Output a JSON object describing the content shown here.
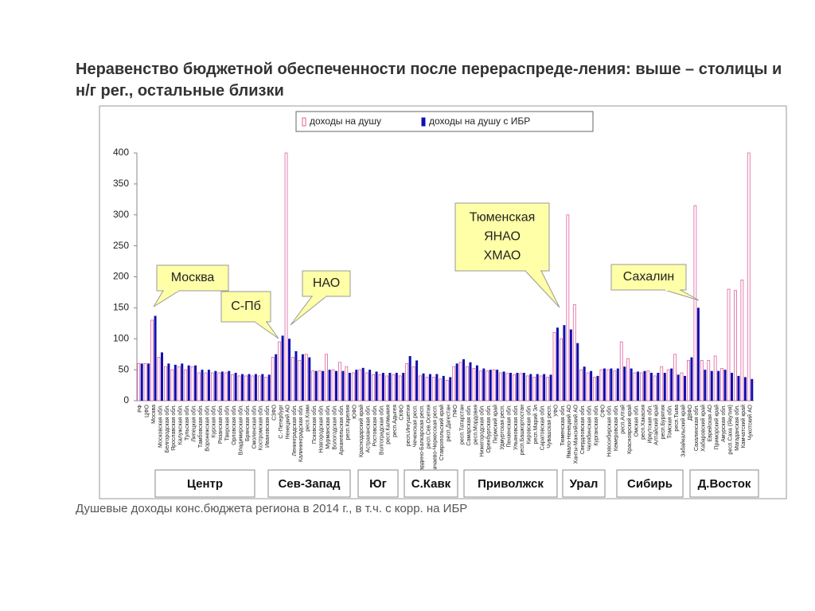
{
  "chart_data": {
    "type": "bar",
    "title": "Неравенство бюджетной обеспеченности после перераспреде-ления: выше – столицы и н/г рег., остальные близки",
    "caption": "Душевые доходы конс.бюджета региона в 2014 г., в т.ч. с корр. на ИБР",
    "categories": [
      "РФ",
      "ЦФО",
      "Москва",
      "Московская обл.",
      "Белгородская обл.",
      "Ярославская обл.",
      "Калужская обл.",
      "Тульская обл.",
      "Липецкая обл.",
      "Тамбовская обл.",
      "Воронежская обл.",
      "Курская обл.",
      "Рязанская обл.",
      "Тверская обл.",
      "Орловская обл.",
      "Владимирская обл.",
      "Брянская обл.",
      "Смоленская обл.",
      "Костромская обл.",
      "Ивановская обл.",
      "СЗФО",
      "С.-Петербург",
      "Ненецкий АО",
      "Ленинградская обл.",
      "Калининградская обл.",
      "респ.Коми",
      "Псковская обл.",
      "Новгородская обл.",
      "Мурманская обл.",
      "Вологодская обл.",
      "Архангельская обл.",
      "респ.Карелия",
      "ЮФО",
      "Краснодарский край",
      "Астраханская обл.",
      "Ростовская обл.",
      "Волгоградская обл.",
      "респ.Калмыкия",
      "респ.Адыгея",
      "СКФО",
      "респ.Ингушетия",
      "Чеченская респ.",
      "Кабардино-Балкарская респ.",
      "респ.Сев.Осетия",
      "Карачаево-Черкесская респ.",
      "Ставропольский край",
      "респ.Дагестан",
      "ПФО",
      "респ.Татарстан",
      "Самарская обл.",
      "респ.Мордовия",
      "Нижегородская обл.",
      "Оренбургская обл.",
      "Пермский край",
      "Удмуртская респ.",
      "Пензенская обл.",
      "Ульяновская обл.",
      "респ.Башкортостан",
      "Кировская обл.",
      "респ.Марий Эл",
      "Саратовская обл.",
      "Чувашская респ.",
      "УФО",
      "Тюменская обл.",
      "Ямало-Ненецкий АО",
      "Ханты-Мансийский АО",
      "Свердловская обл.",
      "Челябинская обл.",
      "Курганская обл.",
      "СФО",
      "Новосибирская обл.",
      "Кемеровская обл.",
      "респ.Алтай",
      "Красноярский край",
      "Омская обл.",
      "респ.Хакасия",
      "Иркутская обл.",
      "Алтайский край",
      "респ.Бурятия",
      "Томская обл.",
      "респ.Тыва",
      "Забайкальский край",
      "ДВФО",
      "Сахалинская обл.",
      "Хабаровский край",
      "Еврейская АО",
      "Приморский край",
      "Амурская обл.",
      "респ.Саха (Якутия)",
      "Магаданская обл.",
      "Камчатский край",
      "Чукотский АО"
    ],
    "series": [
      {
        "name": "доходы на душу",
        "color": "#e0609c",
        "values": [
          60,
          60,
          130,
          70,
          55,
          50,
          55,
          50,
          55,
          45,
          45,
          45,
          45,
          45,
          42,
          40,
          40,
          40,
          40,
          38,
          70,
          95,
          400,
          70,
          65,
          75,
          48,
          48,
          75,
          50,
          62,
          55,
          45,
          50,
          45,
          42,
          42,
          40,
          42,
          40,
          60,
          55,
          40,
          38,
          38,
          35,
          33,
          55,
          62,
          55,
          52,
          48,
          48,
          50,
          45,
          44,
          42,
          44,
          40,
          38,
          40,
          38,
          110,
          100,
          300,
          155,
          50,
          45,
          38,
          50,
          50,
          48,
          95,
          68,
          45,
          45,
          48,
          40,
          55,
          50,
          75,
          45,
          65,
          315,
          65,
          65,
          72,
          52,
          180,
          178,
          195,
          400
        ]
      },
      {
        "name": "доходы на душу с ИБР",
        "color": "#1010b0",
        "values": [
          60,
          60,
          137,
          78,
          60,
          58,
          60,
          57,
          57,
          50,
          50,
          48,
          47,
          48,
          45,
          43,
          43,
          43,
          43,
          42,
          75,
          105,
          100,
          80,
          75,
          70,
          48,
          48,
          50,
          48,
          48,
          45,
          50,
          53,
          50,
          47,
          45,
          45,
          45,
          45,
          72,
          65,
          44,
          43,
          43,
          40,
          38,
          60,
          67,
          62,
          57,
          52,
          50,
          50,
          47,
          45,
          45,
          45,
          43,
          43,
          43,
          42,
          118,
          122,
          115,
          93,
          55,
          48,
          40,
          52,
          52,
          52,
          55,
          52,
          47,
          48,
          45,
          45,
          45,
          52,
          42,
          40,
          70,
          150,
          50,
          48,
          48,
          50,
          45,
          40,
          38,
          35
        ]
      }
    ],
    "ylim": [
      0,
      400
    ],
    "yticks": [
      0,
      50,
      100,
      150,
      200,
      250,
      300,
      350,
      400
    ],
    "annotations": [
      [
        "Москва"
      ],
      [
        "С-Пб"
      ],
      [
        "НАО"
      ],
      [
        "Тюменская",
        "ЯНАО",
        "ХМАО"
      ],
      [
        "Сахалин"
      ]
    ],
    "groups": [
      "Центр",
      "Сев-Запад",
      "Юг",
      "С.Кавк",
      "Приволжск",
      "Урал",
      "Сибирь",
      "Д.Восток"
    ]
  }
}
